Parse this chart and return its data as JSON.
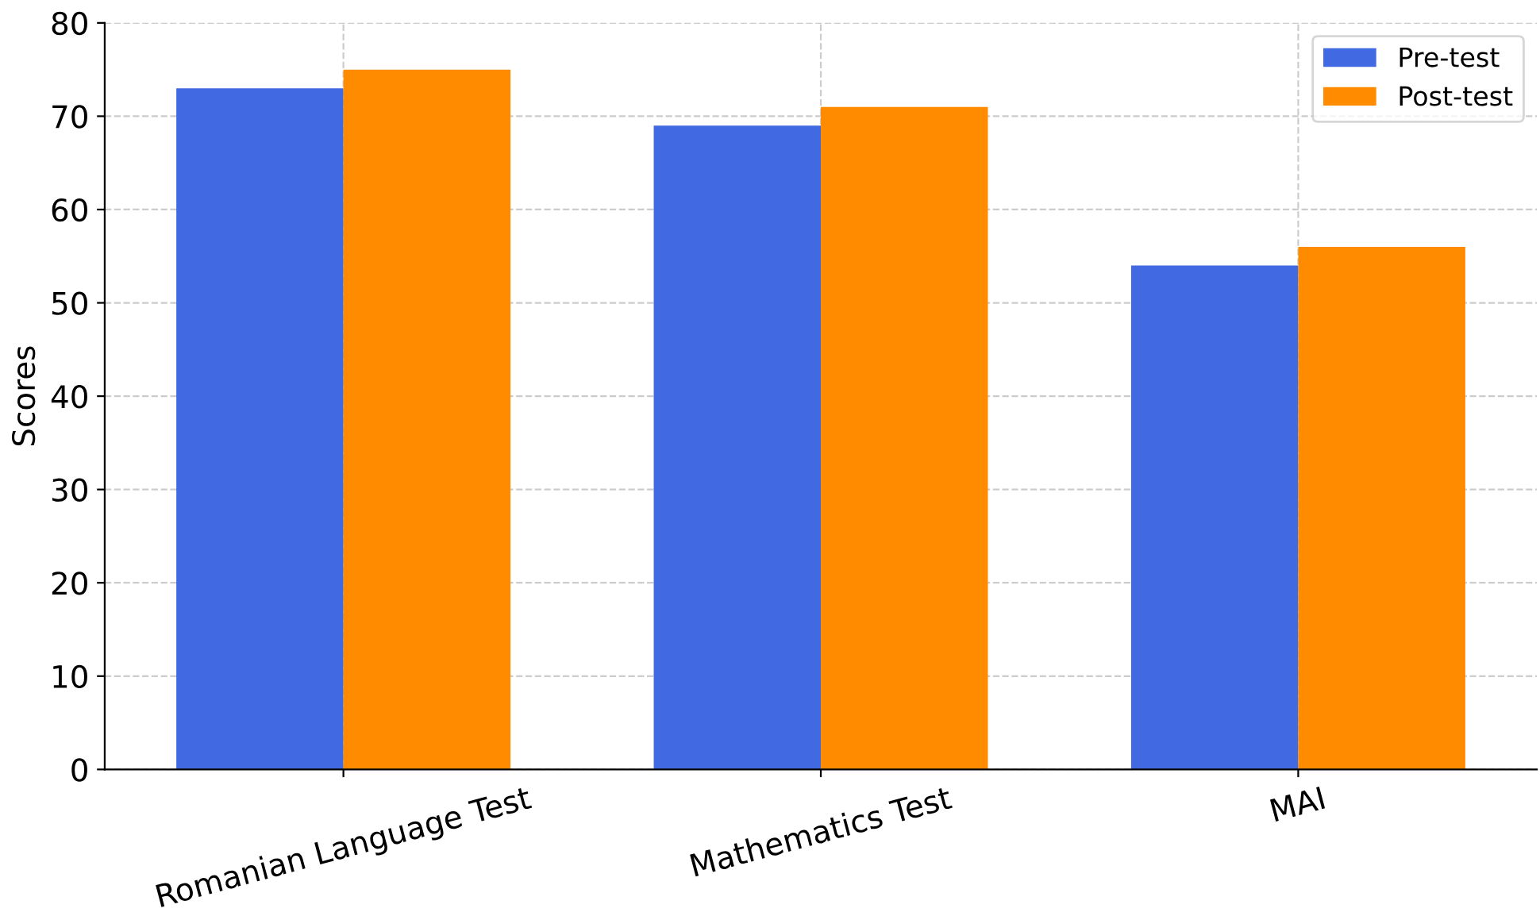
{
  "chart_data": {
    "type": "bar",
    "ylabel": "Scores",
    "categories": [
      "Romanian Language Test",
      "Mathematics Test",
      "MAI"
    ],
    "series": [
      {
        "name": "Pre-test",
        "color": "#4169e1",
        "values": [
          73,
          69,
          54
        ]
      },
      {
        "name": "Post-test",
        "color": "#ff8c00",
        "values": [
          75,
          71,
          56
        ]
      }
    ],
    "ylim": [
      0,
      80
    ],
    "yticks": [
      0,
      10,
      20,
      30,
      40,
      50,
      60,
      70,
      80
    ],
    "grid": true,
    "legend": "top right"
  }
}
